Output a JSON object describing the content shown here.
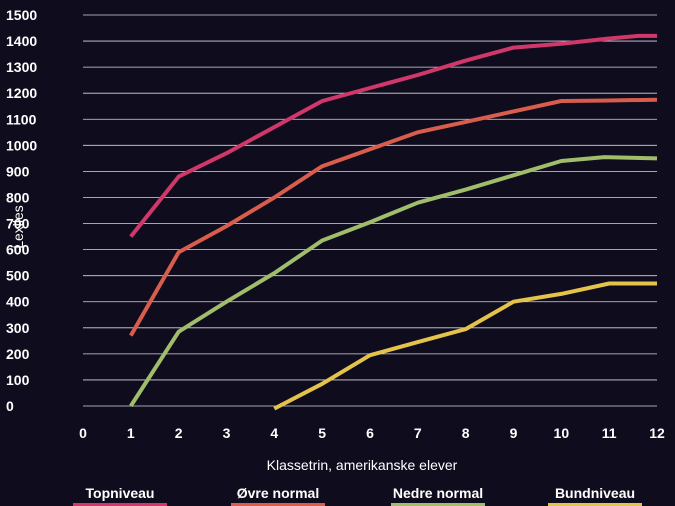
{
  "chart_data": {
    "type": "line",
    "xlabel": "Klassetrin, amerikanske elever",
    "ylabel": "Lexiles",
    "xlim": [
      0,
      12
    ],
    "ylim": [
      0,
      1500
    ],
    "x_ticks": [
      0,
      1,
      2,
      3,
      4,
      5,
      6,
      7,
      8,
      9,
      10,
      11,
      12
    ],
    "y_ticks": [
      0,
      100,
      200,
      300,
      400,
      500,
      600,
      700,
      800,
      900,
      1000,
      1100,
      1200,
      1300,
      1400,
      1500
    ],
    "grid": "horizontal",
    "legend_position": "bottom",
    "series": [
      {
        "name": "Topniveau",
        "color": "#d0386a",
        "points": [
          [
            1,
            650
          ],
          [
            2,
            880
          ],
          [
            3,
            970
          ],
          [
            4,
            1070
          ],
          [
            5,
            1170
          ],
          [
            6,
            1220
          ],
          [
            7,
            1270
          ],
          [
            8,
            1325
          ],
          [
            9,
            1375
          ],
          [
            10,
            1390
          ],
          [
            11,
            1410
          ],
          [
            11.6,
            1420
          ],
          [
            12,
            1420
          ]
        ]
      },
      {
        "name": "Øvre normal",
        "color": "#d95d4c",
        "points": [
          [
            1,
            270
          ],
          [
            2,
            590
          ],
          [
            3,
            690
          ],
          [
            4,
            800
          ],
          [
            5,
            920
          ],
          [
            6,
            985
          ],
          [
            7,
            1050
          ],
          [
            8,
            1090
          ],
          [
            9,
            1130
          ],
          [
            10,
            1170
          ],
          [
            11,
            1172
          ],
          [
            12,
            1175
          ]
        ]
      },
      {
        "name": "Nedre normal",
        "color": "#9fbd6b",
        "points": [
          [
            1,
            0
          ],
          [
            2,
            285
          ],
          [
            3,
            400
          ],
          [
            4,
            510
          ],
          [
            5,
            635
          ],
          [
            6,
            705
          ],
          [
            7,
            780
          ],
          [
            8,
            830
          ],
          [
            9,
            885
          ],
          [
            10,
            940
          ],
          [
            10.9,
            955
          ],
          [
            12,
            950
          ]
        ]
      },
      {
        "name": "Bundniveau",
        "color": "#e4c34a",
        "points": [
          [
            4,
            -10
          ],
          [
            5,
            85
          ],
          [
            6,
            195
          ],
          [
            7,
            245
          ],
          [
            8,
            295
          ],
          [
            9,
            400
          ],
          [
            10,
            430
          ],
          [
            11,
            470
          ],
          [
            12,
            470
          ]
        ]
      }
    ]
  }
}
